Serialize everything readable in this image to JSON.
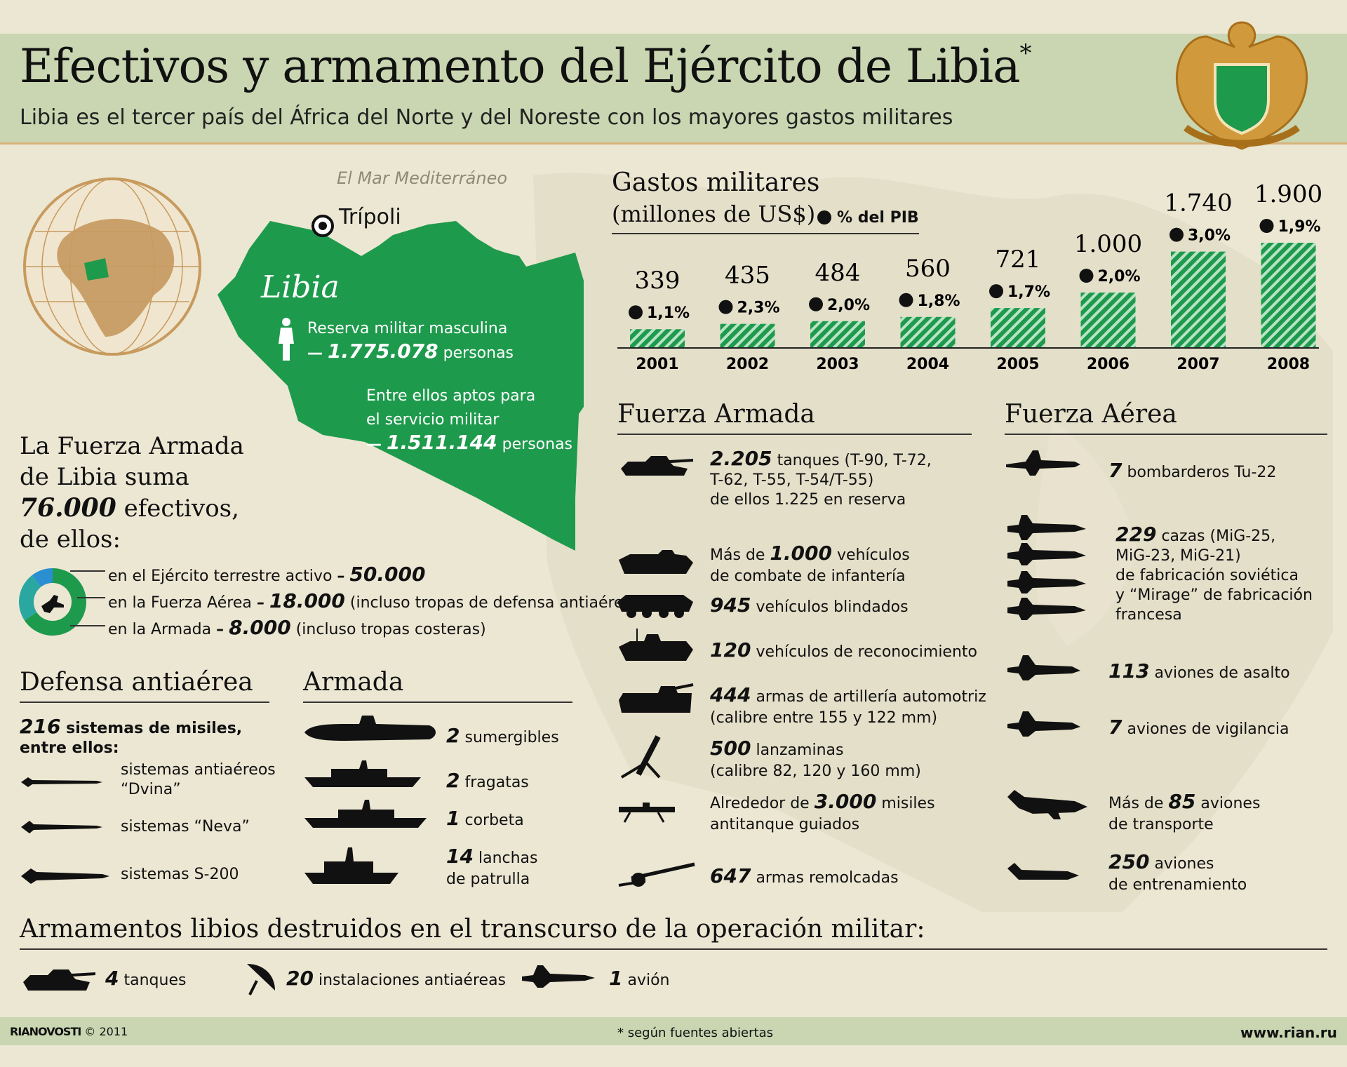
{
  "colors": {
    "green": "#1e9a4c",
    "header_bg": "#c9d6b1",
    "paper": "#ece7d3",
    "gold": "#d09a3c"
  },
  "title": "Efectivos y armamento del Ejército de Libia",
  "title_mark": "*",
  "subtitle": "Libia es el tercer país del África del Norte y del Noreste con los mayores gastos militares",
  "map": {
    "sea_label": "El Mar Mediterráneo",
    "capital": "Trípoli",
    "country": "Libia",
    "reserve_label": "Reserva militar masculina",
    "reserve_dash": "—",
    "reserve_value": "1.775.078",
    "reserve_unit": "personas",
    "fit_label_1": "Entre ellos aptos para",
    "fit_label_2": "el servicio militar",
    "fit_dash": "—",
    "fit_value": "1.511.144",
    "fit_unit": "personas"
  },
  "forces": {
    "line1": "La Fuerza Armada",
    "line2": "de Libia suma",
    "total": "76.000",
    "total_unit": "efectivos,",
    "line4": "de ellos:",
    "items": [
      {
        "label": "en el Ejército terrestre activo",
        "dash": "–",
        "value": "50.000",
        "note": ""
      },
      {
        "label": "en la Fuerza Aérea",
        "dash": "–",
        "value": "18.000",
        "note": "(incluso tropas de defensa antiaérea)"
      },
      {
        "label": "en la Armada",
        "dash": "–",
        "value": "8.000",
        "note": "(incluso tropas costeras)"
      }
    ],
    "donut_shares": [
      50000,
      18000,
      8000
    ]
  },
  "spending": {
    "title": "Gastos militares",
    "unit": "(millones de US$)",
    "legend": "% del PIB",
    "chart_data": {
      "type": "bar",
      "categories": [
        "2001",
        "2002",
        "2003",
        "2004",
        "2005",
        "2006",
        "2007",
        "2008"
      ],
      "values": [
        339,
        435,
        484,
        560,
        721,
        1000,
        1740,
        1900
      ],
      "value_labels": [
        "339",
        "435",
        "484",
        "560",
        "721",
        "1.000",
        "1.740",
        "1.900"
      ],
      "gdp_pct": [
        "1,1%",
        "2,3%",
        "2,0%",
        "1,8%",
        "1,7%",
        "2,0%",
        "3,0%",
        "1,9%"
      ]
    }
  },
  "army": {
    "title": "Fuerza Armada",
    "items": [
      {
        "icon": "tank-icon",
        "num": "2.205",
        "text": "tanques (T-90, T-72,",
        "line2": "T-62, T-55, T-54/T-55)",
        "line3": "de ellos 1.225 en reserva"
      },
      {
        "icon": "ifv-icon",
        "pre": "Más de",
        "num": "1.000",
        "text": "vehículos",
        "line2": "de combate de infantería"
      },
      {
        "icon": "apc-icon",
        "num": "945",
        "text": "vehículos blindados"
      },
      {
        "icon": "recon-vehicle-icon",
        "num": "120",
        "text": "vehículos de reconocimiento"
      },
      {
        "icon": "artillery-icon",
        "num": "444",
        "text": "armas de artillería automotriz",
        "line2": "(calibre entre 155 y 122 mm)"
      },
      {
        "icon": "mortar-icon",
        "num": "500",
        "text": "lanzaminas",
        "line2": "(calibre 82, 120 y 160 mm)"
      },
      {
        "icon": "atgm-icon",
        "pre": "Alrededor de",
        "num": "3.000",
        "text": "misiles",
        "line2": "antitanque guiados"
      },
      {
        "icon": "towed-gun-icon",
        "num": "647",
        "text": "armas remolcadas"
      }
    ]
  },
  "airforce": {
    "title": "Fuerza Aérea",
    "items": [
      {
        "num": "7",
        "text": "bombarderos Tu-22"
      },
      {
        "num": "229",
        "text": "cazas (MiG-25,",
        "line2": "MiG-23, MiG-21)",
        "line3": "de fabricación soviética",
        "line4": "y “Mirage” de fabricación",
        "line5": "francesa"
      },
      {
        "num": "113",
        "text": "aviones de asalto"
      },
      {
        "num": "7",
        "text": "aviones de vigilancia"
      },
      {
        "pre": "Más de",
        "num": "85",
        "text": "aviones",
        "line2": "de transporte"
      },
      {
        "num": "250",
        "text": "aviones",
        "line2": "de entrenamiento"
      }
    ]
  },
  "air_defense": {
    "title": "Defensa antiaérea",
    "head_num": "216",
    "head_text": "sistemas de misiles,",
    "head_line2": "entre ellos:",
    "items": [
      {
        "text": "sistemas antiaéreos",
        "line2": "“Dvina”"
      },
      {
        "text": "sistemas “Neva”"
      },
      {
        "text": "sistemas S-200"
      }
    ]
  },
  "navy": {
    "title": "Armada",
    "items": [
      {
        "num": "2",
        "text": "sumergibles"
      },
      {
        "num": "2",
        "text": "fragatas"
      },
      {
        "num": "1",
        "text": "corbeta"
      },
      {
        "num": "14",
        "text": "lanchas",
        "line2": "de patrulla"
      }
    ]
  },
  "destroyed": {
    "title": "Armamentos libios destruidos en el transcurso de la operación militar:",
    "items": [
      {
        "num": "4",
        "text": "tanques"
      },
      {
        "num": "20",
        "text": "instalaciones antiaéreas"
      },
      {
        "num": "1",
        "text": "avión"
      }
    ]
  },
  "footer": {
    "brand": "RIANOVOSTI",
    "copyright": "© 2011",
    "note": "* según fuentes abiertas",
    "site": "www.rian.ru"
  }
}
